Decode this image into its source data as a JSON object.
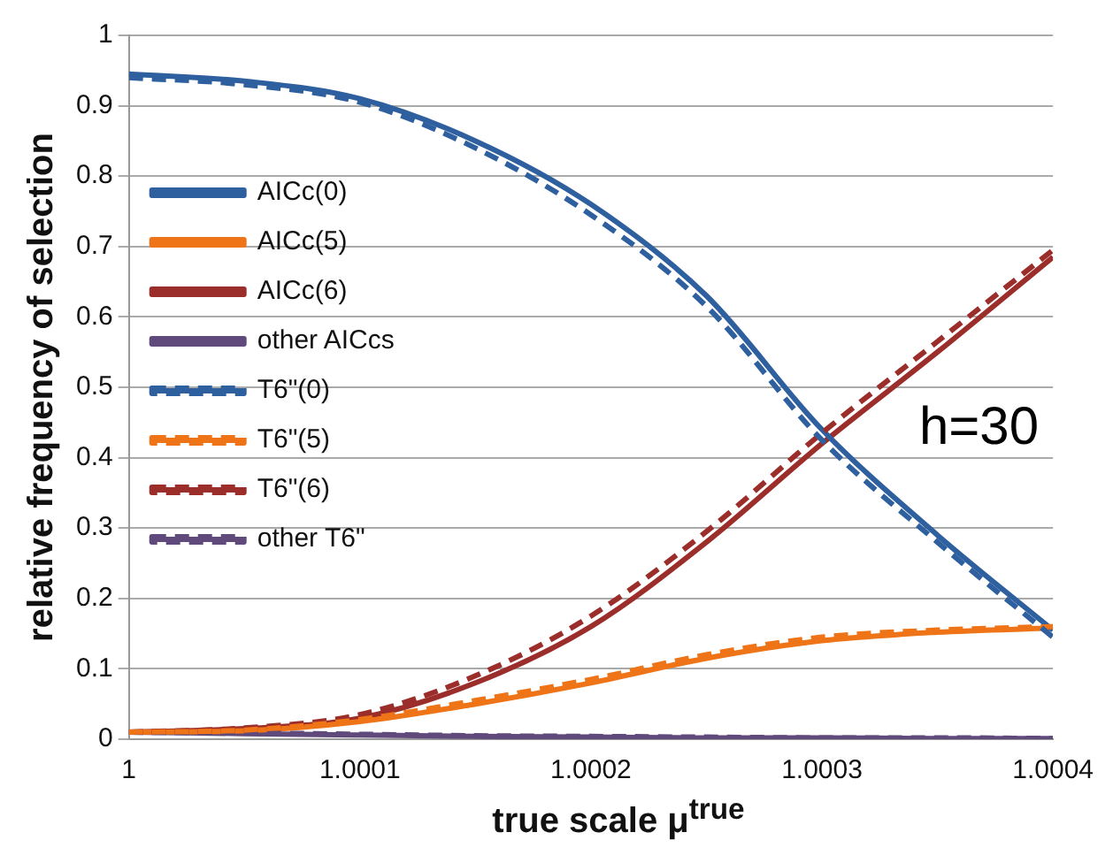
{
  "chart_data": {
    "type": "line",
    "xlabel": "true scale μ$^{true}$",
    "ylabel": "relative frequency of selection",
    "x": [
      1,
      1.00005,
      1.0001,
      1.00015,
      1.0002,
      1.00025,
      1.0003,
      1.00035,
      1.0004
    ],
    "xlim": [
      1,
      1.0004
    ],
    "xticks": [
      1,
      1.0001,
      1.0002,
      1.0003,
      1.0004
    ],
    "ylim": [
      0,
      1
    ],
    "yticks": [
      0,
      0.1,
      0.2,
      0.3,
      0.4,
      0.5,
      0.6,
      0.7,
      0.8,
      0.9,
      1
    ],
    "grid": "y",
    "legend": "left",
    "marker": "none",
    "annotations": [
      "h=30"
    ],
    "series": [
      {
        "name": "AICc(0)",
        "color": "#2e5f9e",
        "line_style": "solid",
        "values": [
          0.945,
          0.935,
          0.91,
          0.85,
          0.76,
          0.63,
          0.44,
          0.29,
          0.155
        ]
      },
      {
        "name": "AICc(5)",
        "color": "#ee7417",
        "line_style": "solid",
        "values": [
          0.01,
          0.012,
          0.025,
          0.05,
          0.08,
          0.115,
          0.14,
          0.152,
          0.158
        ]
      },
      {
        "name": "AICc(6)",
        "color": "#9b2d2a",
        "line_style": "solid",
        "values": [
          0.01,
          0.015,
          0.03,
          0.08,
          0.16,
          0.28,
          0.42,
          0.55,
          0.685
        ]
      },
      {
        "name": "other AICcs",
        "color": "#604a7b",
        "line_style": "solid",
        "values": [
          0.01,
          0.008,
          0.006,
          0.004,
          0.003,
          0.002,
          0.002,
          0.001,
          0.001
        ]
      },
      {
        "name": "T6\"(0)",
        "color": "#2e5f9e",
        "line_style": "dashed",
        "values": [
          0.94,
          0.93,
          0.905,
          0.84,
          0.745,
          0.615,
          0.425,
          0.28,
          0.145
        ]
      },
      {
        "name": "T6\"(5)",
        "color": "#ee7417",
        "line_style": "dashed",
        "values": [
          0.01,
          0.013,
          0.028,
          0.055,
          0.085,
          0.12,
          0.145,
          0.155,
          0.16
        ]
      },
      {
        "name": "T6\"(6)",
        "color": "#9b2d2a",
        "line_style": "dashed",
        "values": [
          0.01,
          0.016,
          0.035,
          0.09,
          0.175,
          0.295,
          0.435,
          0.565,
          0.695
        ]
      },
      {
        "name": "other T6\"",
        "color": "#604a7b",
        "line_style": "dashed",
        "values": [
          0.01,
          0.009,
          0.007,
          0.005,
          0.004,
          0.003,
          0.002,
          0.002,
          0.001
        ]
      }
    ]
  }
}
